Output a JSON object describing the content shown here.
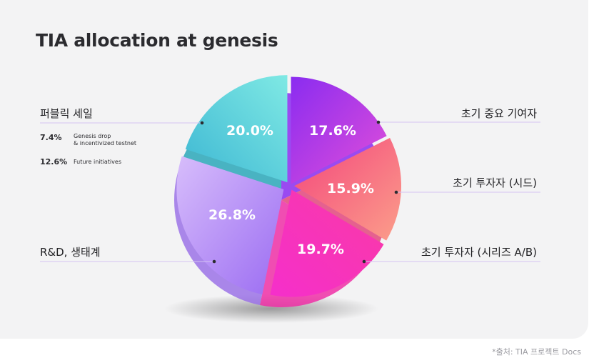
{
  "chart_data": {
    "type": "pie",
    "title": "TIA allocation at genesis",
    "slices": [
      {
        "label": "초기 중요 기여자",
        "value": 17.6,
        "display": "17.6%",
        "color": "#a83ef2"
      },
      {
        "label": "초기 투자자 (시드)",
        "value": 15.9,
        "display": "15.9%",
        "color": "#f25a86"
      },
      {
        "label": "초기 투자자 (시리즈 A/B)",
        "value": 19.7,
        "display": "19.7%",
        "color": "#f43fb6"
      },
      {
        "label": "R&D, 생태계",
        "value": 26.8,
        "display": "26.8%",
        "color": "#b58cf0"
      },
      {
        "label": "퍼블릭 세일",
        "value": 20.0,
        "display": "20.0%",
        "color": "#4fc6d6"
      }
    ],
    "public_sale_breakdown": [
      {
        "value": "7.4%",
        "text1": "Genesis drop",
        "text2": "& incentivized testnet"
      },
      {
        "value": "12.6%",
        "text1": "Future initiatives",
        "text2": ""
      }
    ]
  },
  "source": "*출처: TIA 프로젝트 Docs"
}
